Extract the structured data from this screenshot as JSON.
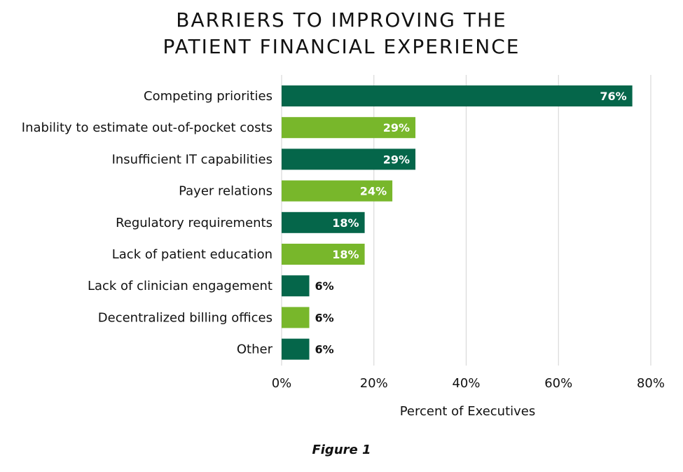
{
  "title_lines": [
    "BARRIERS TO IMPROVING THE",
    "PATIENT FINANCIAL EXPERIENCE"
  ],
  "caption": "Figure 1",
  "colors": {
    "dark_green": "#05664A",
    "light_green": "#78B72B",
    "grid": "#d9d9d9",
    "label_inside": "#ffffff",
    "label_outside": "#111111"
  },
  "chart_data": {
    "type": "bar",
    "orientation": "horizontal",
    "title": "BARRIERS TO IMPROVING THE PATIENT FINANCIAL EXPERIENCE",
    "categories": [
      "Competing priorities",
      "Inability to estimate out-of-pocket costs",
      "Insufficient IT capabilities",
      "Payer relations",
      "Regulatory requirements",
      "Lack of patient education",
      "Lack of clinician engagement",
      "Decentralized billing offices",
      "Other"
    ],
    "values": [
      76,
      29,
      29,
      24,
      18,
      18,
      6,
      6,
      6
    ],
    "value_labels": [
      "76%",
      "29%",
      "29%",
      "24%",
      "18%",
      "18%",
      "6%",
      "6%",
      "6%"
    ],
    "bar_colors": [
      "dark_green",
      "light_green",
      "dark_green",
      "light_green",
      "dark_green",
      "light_green",
      "dark_green",
      "light_green",
      "dark_green"
    ],
    "xlabel": "Percent of Executives",
    "ylabel": "",
    "xlim": [
      0,
      80
    ],
    "xticks": [
      0,
      20,
      40,
      60,
      80
    ],
    "xtick_labels": [
      "0%",
      "20%",
      "40%",
      "60%",
      "80%"
    ],
    "grid": "vertical"
  }
}
